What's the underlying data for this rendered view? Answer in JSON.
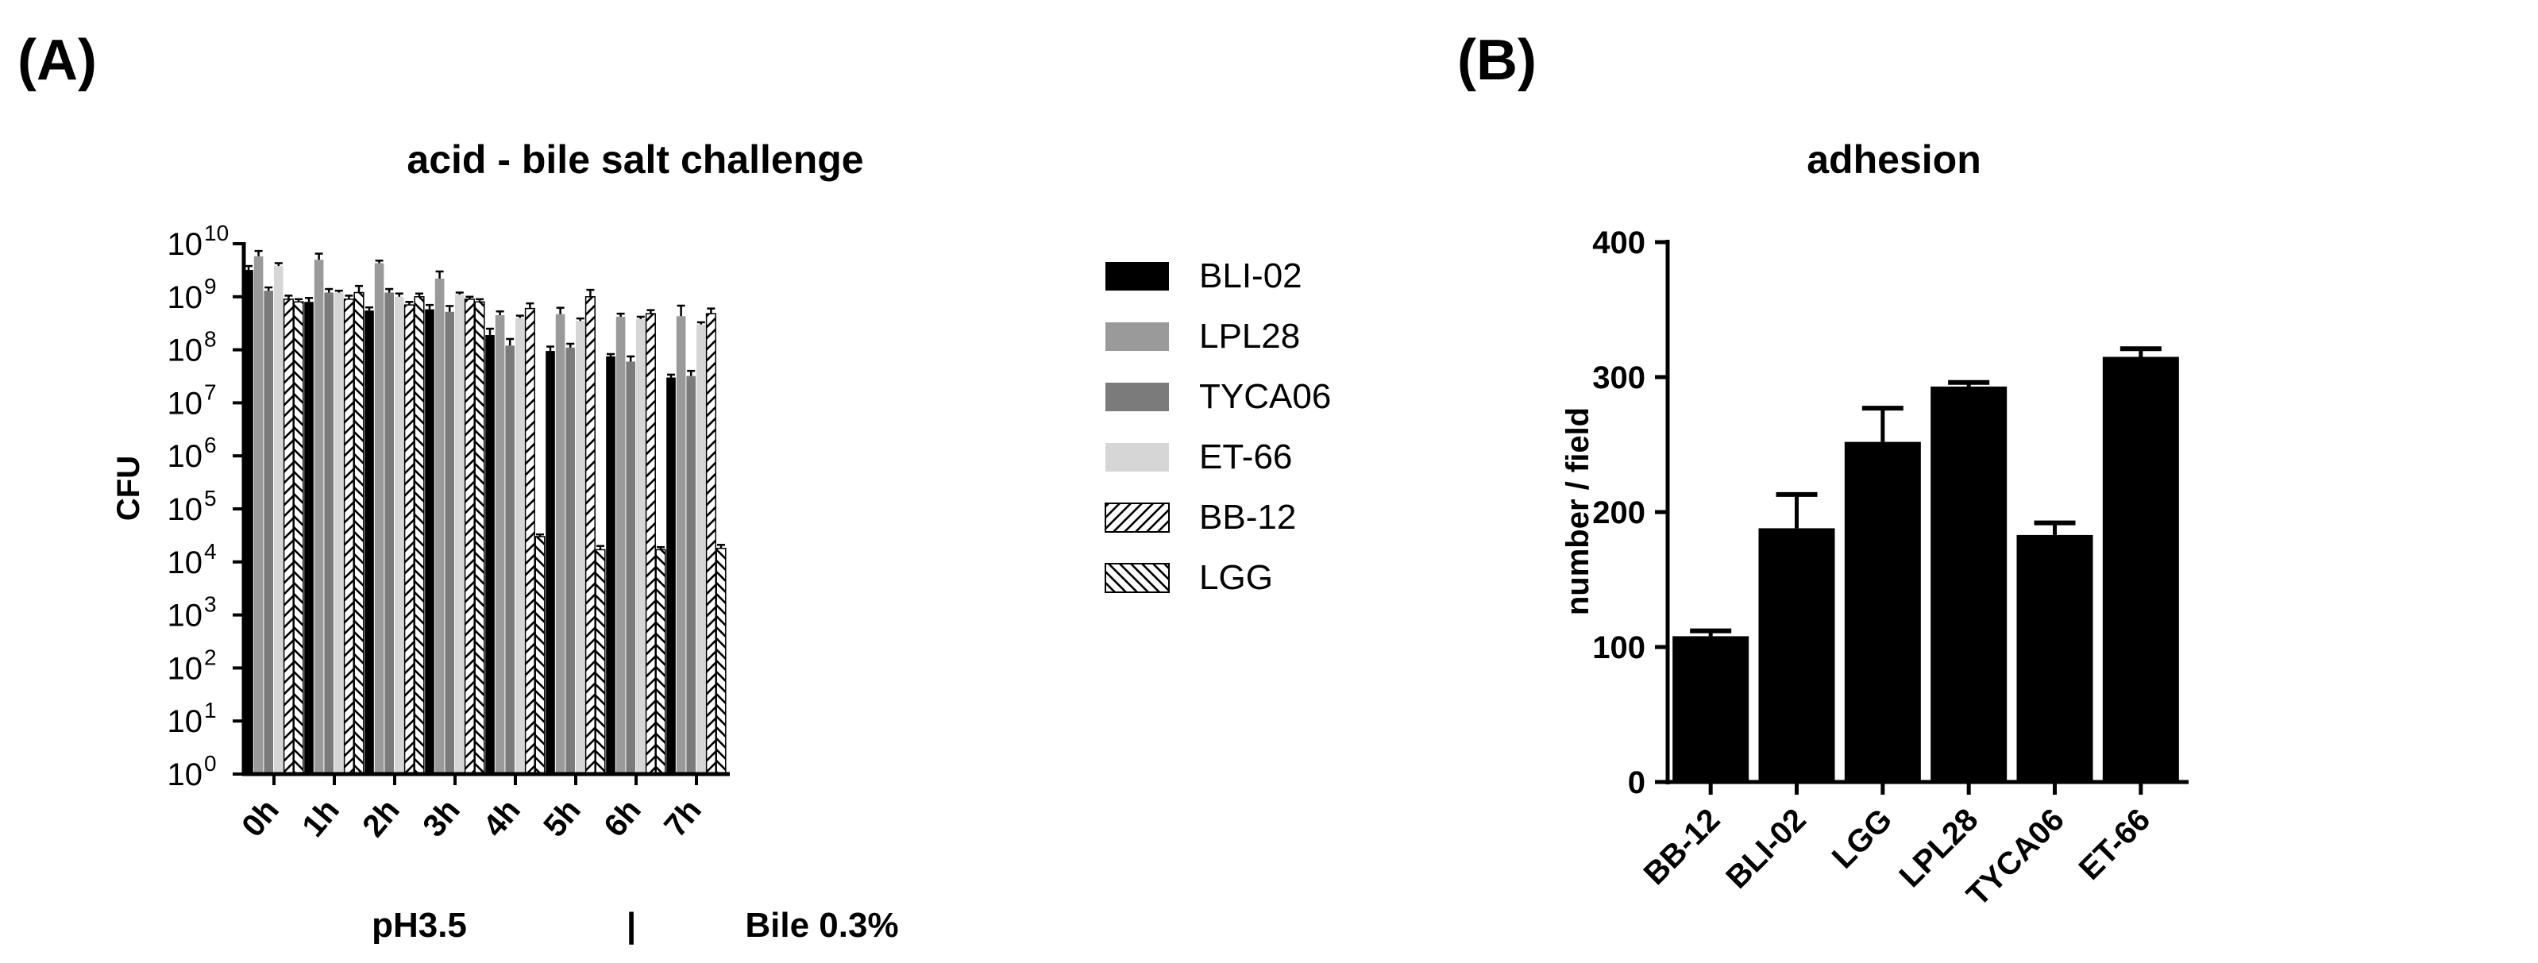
{
  "panels": {
    "a_label": "(A)",
    "b_label": "(B)"
  },
  "colors": {
    "BLI-02": "#000000",
    "LPL28": "#9a9a9a",
    "TYCA06": "#7b7b7b",
    "ET-66": "#d6d6d6",
    "hatch": "#000000"
  },
  "chart_data": [
    {
      "type": "bar",
      "title": "acid - bile salt challenge",
      "ylabel": "CFU",
      "xlabel": "",
      "yscale": "log",
      "ylim": [
        1,
        10000000000
      ],
      "yticks": [
        {
          "base": "10",
          "exp": "0"
        },
        {
          "base": "10",
          "exp": "1"
        },
        {
          "base": "10",
          "exp": "2"
        },
        {
          "base": "10",
          "exp": "3"
        },
        {
          "base": "10",
          "exp": "4"
        },
        {
          "base": "10",
          "exp": "5"
        },
        {
          "base": "10",
          "exp": "6"
        },
        {
          "base": "10",
          "exp": "7"
        },
        {
          "base": "10",
          "exp": "8"
        },
        {
          "base": "10",
          "exp": "9"
        },
        {
          "base": "10",
          "exp": "10"
        }
      ],
      "categories": [
        "0h",
        "1h",
        "2h",
        "3h",
        "4h",
        "5h",
        "6h",
        "7h"
      ],
      "series": [
        {
          "name": "BLI-02",
          "fill": "solid",
          "values": [
            3200000000,
            800000000,
            550000000,
            580000000,
            190000000,
            95000000,
            75000000,
            30000000
          ],
          "errors": [
            600000000,
            150000000,
            80000000,
            120000000,
            60000000,
            20000000,
            8000000,
            4000000
          ]
        },
        {
          "name": "LPL28",
          "fill": "solid",
          "values": [
            5800000000,
            5000000000,
            4300000000,
            2200000000,
            450000000,
            470000000,
            420000000,
            430000000
          ],
          "errors": [
            1500000000,
            1500000000,
            500000000,
            800000000,
            80000000,
            150000000,
            60000000,
            250000000
          ]
        },
        {
          "name": "TYCA06",
          "fill": "solid",
          "values": [
            1300000000,
            1200000000,
            1200000000,
            520000000,
            120000000,
            110000000,
            60000000,
            32000000
          ],
          "errors": [
            200000000,
            200000000,
            200000000,
            150000000,
            40000000,
            20000000,
            15000000,
            8000000
          ]
        },
        {
          "name": "ET-66",
          "fill": "solid",
          "values": [
            3800000000,
            1200000000,
            1000000000,
            1100000000,
            400000000,
            350000000,
            380000000,
            300000000
          ],
          "errors": [
            500000000,
            100000000,
            150000000,
            100000000,
            40000000,
            40000000,
            40000000,
            30000000
          ]
        },
        {
          "name": "BB-12",
          "fill": "hatch-right",
          "values": [
            900000000,
            900000000,
            700000000,
            900000000,
            600000000,
            1000000000,
            480000000,
            480000000
          ],
          "errors": [
            150000000,
            150000000,
            100000000,
            100000000,
            150000000,
            350000000,
            80000000,
            120000000
          ]
        },
        {
          "name": "LGG",
          "fill": "hatch-left",
          "values": [
            800000000,
            1200000000,
            1000000000,
            800000000,
            30000,
            17000,
            17000,
            18000
          ],
          "errors": [
            100000000,
            400000000,
            150000000,
            100000000,
            3000,
            3000,
            2000,
            3000
          ]
        }
      ],
      "annotations": {
        "left_phase": "pH3.5",
        "separator": "|",
        "right_phase": "Bile 0.3%"
      }
    },
    {
      "type": "bar",
      "title": "adhesion",
      "ylabel": "number / field",
      "xlabel": "",
      "ylim": [
        0,
        400
      ],
      "yticks": [
        0,
        100,
        200,
        300,
        400
      ],
      "categories": [
        "BB-12",
        "BLI-02",
        "LGG",
        "LPL28",
        "TYCA06",
        "ET-66"
      ],
      "values": [
        108,
        188,
        252,
        293,
        183,
        315
      ],
      "errors": [
        4,
        25,
        25,
        3,
        9,
        6
      ]
    }
  ]
}
